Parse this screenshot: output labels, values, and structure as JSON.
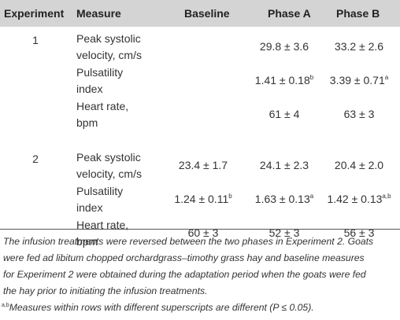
{
  "columns": [
    "Experiment",
    "Measure",
    "Baseline",
    "Phase A",
    "Phase B"
  ],
  "rows": [
    {
      "experiment": "1",
      "measure_line1": "Peak systolic",
      "measure_line2": "velocity, cm/s",
      "baseline": "",
      "baseline_sup": "",
      "phase_a": "29.8 ± 3.6",
      "phase_a_sup": "",
      "phase_b": "33.2 ± 2.6",
      "phase_b_sup": ""
    },
    {
      "experiment": "",
      "measure_line1": "Pulsatility",
      "measure_line2": "index",
      "baseline": "",
      "baseline_sup": "",
      "phase_a": "1.41 ± 0.18",
      "phase_a_sup": "b",
      "phase_b": "3.39 ± 0.71",
      "phase_b_sup": "a"
    },
    {
      "experiment": "",
      "measure_line1": "Heart rate,",
      "measure_line2": "bpm",
      "baseline": "",
      "baseline_sup": "",
      "phase_a": "61 ± 4",
      "phase_a_sup": "",
      "phase_b": "63 ± 3",
      "phase_b_sup": ""
    },
    {
      "experiment": "2",
      "measure_line1": "Peak systolic",
      "measure_line2": "velocity, cm/s",
      "baseline": "23.4 ± 1.7",
      "baseline_sup": "",
      "phase_a": "24.1 ± 2.3",
      "phase_a_sup": "",
      "phase_b": "20.4 ± 2.0",
      "phase_b_sup": ""
    },
    {
      "experiment": "",
      "measure_line1": "Pulsatility",
      "measure_line2": "index",
      "baseline": "1.24 ± 0.11",
      "baseline_sup": "b",
      "phase_a": "1.63 ± 0.13",
      "phase_a_sup": "a",
      "phase_b": "1.42 ± 0.13",
      "phase_b_sup": "a,b"
    },
    {
      "experiment": "",
      "measure_line1": "Heart rate,",
      "measure_line2": "bpm",
      "baseline": "60 ± 3",
      "baseline_sup": "",
      "phase_a": "52 ± 3",
      "phase_a_sup": "",
      "phase_b": "56 ± 3",
      "phase_b_sup": ""
    }
  ],
  "footnote_lines": [
    "The infusion treatments were reversed between the two phases in Experiment 2. Goats",
    "were fed ad libitum chopped orchardgrass–timothy grass hay and baseline measures",
    "for Experiment 2 were obtained during the adaptation period when the goats were fed",
    "the hay prior to initiating the infusion treatments."
  ],
  "footnote2_sup": "a,b",
  "footnote2_text": "Measures within rows with different superscripts are different (P ≤ 0.05)."
}
